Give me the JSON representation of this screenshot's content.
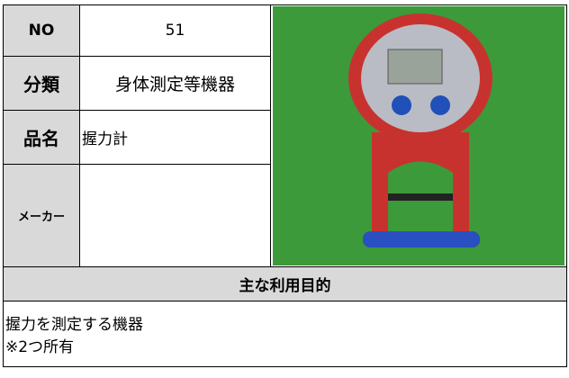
{
  "fields": [
    {
      "label": "NO",
      "value": "51"
    },
    {
      "label": "分類",
      "value": "身体測定等機器"
    },
    {
      "label": "品名",
      "value": "握力計"
    },
    {
      "label": "メーカー"
    }
  ],
  "section": {
    "title": "主な利用目的",
    "lines": [
      "握力を測定する機器",
      "※2つ所有"
    ]
  }
}
